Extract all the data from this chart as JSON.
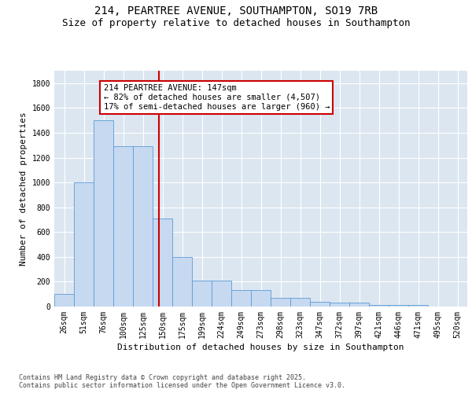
{
  "title_line1": "214, PEARTREE AVENUE, SOUTHAMPTON, SO19 7RB",
  "title_line2": "Size of property relative to detached houses in Southampton",
  "xlabel": "Distribution of detached houses by size in Southampton",
  "ylabel": "Number of detached properties",
  "categories": [
    "26sqm",
    "51sqm",
    "76sqm",
    "100sqm",
    "125sqm",
    "150sqm",
    "175sqm",
    "199sqm",
    "224sqm",
    "249sqm",
    "273sqm",
    "298sqm",
    "323sqm",
    "347sqm",
    "372sqm",
    "397sqm",
    "421sqm",
    "446sqm",
    "471sqm",
    "495sqm",
    "520sqm"
  ],
  "values": [
    100,
    1000,
    1500,
    1290,
    1290,
    710,
    400,
    210,
    210,
    130,
    130,
    70,
    70,
    40,
    30,
    30,
    15,
    10,
    15,
    0,
    0
  ],
  "bar_color": "#c6d9f1",
  "bar_edge_color": "#5b9bd5",
  "vline_x": 4.82,
  "vline_color": "#cc0000",
  "annotation_text": "214 PEARTREE AVENUE: 147sqm\n← 82% of detached houses are smaller (4,507)\n17% of semi-detached houses are larger (960) →",
  "annotation_box_color": "#cc0000",
  "annotation_text_color": "#000000",
  "ylim": [
    0,
    1900
  ],
  "yticks": [
    0,
    200,
    400,
    600,
    800,
    1000,
    1200,
    1400,
    1600,
    1800
  ],
  "bg_color": "#dce6f1",
  "grid_color": "#ffffff",
  "footer_text": "Contains HM Land Registry data © Crown copyright and database right 2025.\nContains public sector information licensed under the Open Government Licence v3.0.",
  "title_fontsize": 10,
  "subtitle_fontsize": 9,
  "tick_fontsize": 7,
  "label_fontsize": 8,
  "annotation_fontsize": 7.5,
  "footer_fontsize": 6.0
}
